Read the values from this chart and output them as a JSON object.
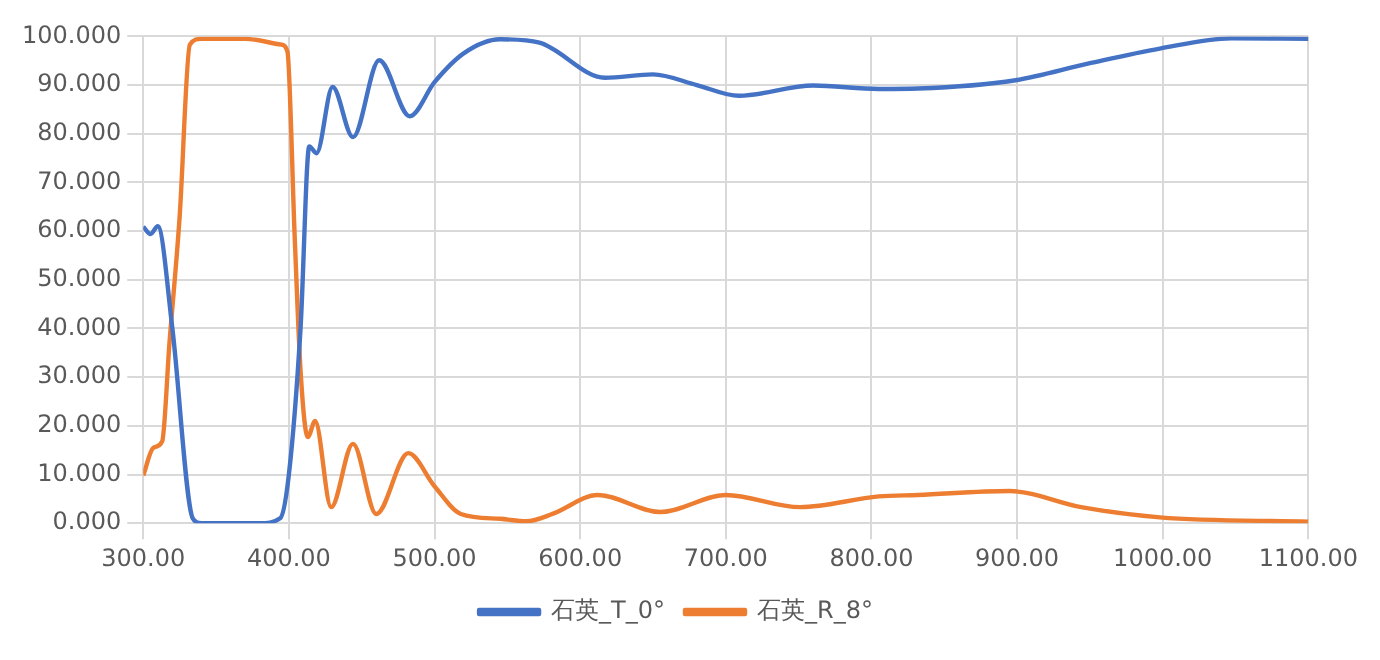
{
  "chart_data": {
    "type": "line",
    "xlim": [
      300,
      1100
    ],
    "xticks": [
      {
        "value": 300,
        "label": "300.00"
      },
      {
        "value": 400,
        "label": "400.00"
      },
      {
        "value": 500,
        "label": "500.00"
      },
      {
        "value": 600,
        "label": "600.00"
      },
      {
        "value": 700,
        "label": "700.00"
      },
      {
        "value": 800,
        "label": "800.00"
      },
      {
        "value": 900,
        "label": "900.00"
      },
      {
        "value": 1000,
        "label": "1000.00"
      },
      {
        "value": 1100,
        "label": "1100.00"
      }
    ],
    "ylim": [
      0,
      100
    ],
    "yticks": [
      {
        "value": 0,
        "label": "0.000"
      },
      {
        "value": 10,
        "label": "10.000"
      },
      {
        "value": 20,
        "label": "20.000"
      },
      {
        "value": 30,
        "label": "30.000"
      },
      {
        "value": 40,
        "label": "40.000"
      },
      {
        "value": 50,
        "label": "50.000"
      },
      {
        "value": 60,
        "label": "60.000"
      },
      {
        "value": 70,
        "label": "70.000"
      },
      {
        "value": 80,
        "label": "80.000"
      },
      {
        "value": 90,
        "label": "90.000"
      },
      {
        "value": 100,
        "label": "100.000"
      }
    ],
    "grid": true,
    "legend": "bottom",
    "marker": "none",
    "line_style": "solid",
    "series": [
      {
        "name": "石英_T_0°",
        "color": "#4472c4",
        "x": [
          300,
          305,
          310,
          320,
          334,
          340,
          360,
          380,
          394,
          400,
          408,
          414,
          419,
          430,
          444,
          462,
          483,
          500,
          520,
          545,
          572,
          617,
          650,
          680,
          709,
          760,
          805,
          832,
          899,
          950,
          998,
          1047,
          1100
        ],
        "values": [
          60.9,
          59.4,
          61,
          40,
          1,
          0,
          0,
          0,
          1,
          10,
          40,
          77.4,
          76,
          89.6,
          79.3,
          95.1,
          83.6,
          90.6,
          96.5,
          99.4,
          98.7,
          91.5,
          92.2,
          90,
          87.8,
          89.9,
          89.2,
          89.3,
          91,
          94.5,
          97.5,
          99.6,
          99.5
        ]
      },
      {
        "name": "石英_R_8°",
        "color": "#ed7d31",
        "x": [
          300,
          307,
          313,
          318,
          325,
          332,
          340,
          370,
          395,
          399,
          404,
          408,
          413,
          418,
          429,
          444,
          460,
          482,
          500,
          518,
          545,
          563,
          581,
          612,
          655,
          700,
          751,
          805,
          832,
          895,
          944,
          998,
          1100
        ],
        "values": [
          9.8,
          15.5,
          16.8,
          37,
          63,
          98.3,
          99.5,
          99.5,
          98.3,
          96.9,
          58.7,
          31.4,
          17.7,
          21,
          3.3,
          16.3,
          1.9,
          14.4,
          7.6,
          1.9,
          0.9,
          0.4,
          1.9,
          5.8,
          2.3,
          5.8,
          3.3,
          5.5,
          5.8,
          6.6,
          3.3,
          1.2,
          0.3
        ]
      }
    ]
  }
}
